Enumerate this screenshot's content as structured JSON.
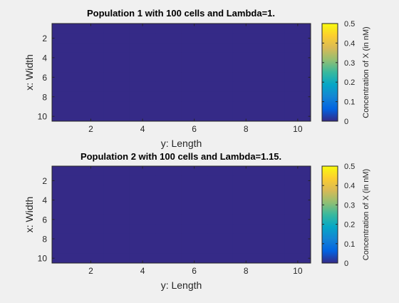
{
  "figure": {
    "background": "#f0f0f0",
    "fill_color": "#352a87",
    "colormap": "parula",
    "colormap_stops": [
      "#352a87",
      "#0363e1",
      "#1485d4",
      "#06a7c6",
      "#38b99e",
      "#92bf73",
      "#d9ba56",
      "#fcce2e",
      "#f9fb0e"
    ]
  },
  "chart_data": [
    {
      "type": "heatmap",
      "title": "Population 1 with 100 cells and Lambda=1.",
      "xlabel": "y: Length",
      "ylabel": "x: Width",
      "xlim": [
        0.5,
        10.5
      ],
      "ylim": [
        0.5,
        10.5
      ],
      "y_reversed": true,
      "xticks": [
        2,
        4,
        6,
        8,
        10
      ],
      "yticks": [
        2,
        4,
        6,
        8,
        10
      ],
      "grid": false,
      "rows": 10,
      "cols": 10,
      "values": [
        [
          0,
          0,
          0,
          0,
          0,
          0,
          0,
          0,
          0,
          0
        ],
        [
          0,
          0,
          0,
          0,
          0,
          0,
          0,
          0,
          0,
          0
        ],
        [
          0,
          0,
          0,
          0,
          0,
          0,
          0,
          0,
          0,
          0
        ],
        [
          0,
          0,
          0,
          0,
          0,
          0,
          0,
          0,
          0,
          0
        ],
        [
          0,
          0,
          0,
          0,
          0,
          0,
          0,
          0,
          0,
          0
        ],
        [
          0,
          0,
          0,
          0,
          0,
          0,
          0,
          0,
          0,
          0
        ],
        [
          0,
          0,
          0,
          0,
          0,
          0,
          0,
          0,
          0,
          0
        ],
        [
          0,
          0,
          0,
          0,
          0,
          0,
          0,
          0,
          0,
          0
        ],
        [
          0,
          0,
          0,
          0,
          0,
          0,
          0,
          0,
          0,
          0
        ],
        [
          0,
          0,
          0,
          0,
          0,
          0,
          0,
          0,
          0,
          0
        ]
      ],
      "colorbar": {
        "label": "Concentration of X (in nM)",
        "clim": [
          0,
          0.5
        ],
        "ticks": [
          0,
          0.1,
          0.2,
          0.3,
          0.4,
          0.5
        ],
        "tick_labels": [
          "0",
          "0.1",
          "0.2",
          "0.3",
          "0.4",
          "0.5"
        ]
      }
    },
    {
      "type": "heatmap",
      "title": "Population 2 with 100 cells and Lambda=1.15.",
      "xlabel": "y: Length",
      "ylabel": "x: Width",
      "xlim": [
        0.5,
        10.5
      ],
      "ylim": [
        0.5,
        10.5
      ],
      "y_reversed": true,
      "xticks": [
        2,
        4,
        6,
        8,
        10
      ],
      "yticks": [
        2,
        4,
        6,
        8,
        10
      ],
      "grid": false,
      "rows": 10,
      "cols": 10,
      "values": [
        [
          0,
          0,
          0,
          0,
          0,
          0,
          0,
          0,
          0,
          0
        ],
        [
          0,
          0,
          0,
          0,
          0,
          0,
          0,
          0,
          0,
          0
        ],
        [
          0,
          0,
          0,
          0,
          0,
          0,
          0,
          0,
          0,
          0
        ],
        [
          0,
          0,
          0,
          0,
          0,
          0,
          0,
          0,
          0,
          0
        ],
        [
          0,
          0,
          0,
          0,
          0,
          0,
          0,
          0,
          0,
          0
        ],
        [
          0,
          0,
          0,
          0,
          0,
          0,
          0,
          0,
          0,
          0
        ],
        [
          0,
          0,
          0,
          0,
          0,
          0,
          0,
          0,
          0,
          0
        ],
        [
          0,
          0,
          0,
          0,
          0,
          0,
          0,
          0,
          0,
          0
        ],
        [
          0,
          0,
          0,
          0,
          0,
          0,
          0,
          0,
          0,
          0
        ],
        [
          0,
          0,
          0,
          0,
          0,
          0,
          0,
          0,
          0,
          0
        ]
      ],
      "colorbar": {
        "label": "Concentration of X (in nM)",
        "clim": [
          0,
          0.5
        ],
        "ticks": [
          0,
          0.1,
          0.2,
          0.3,
          0.4,
          0.5
        ],
        "tick_labels": [
          "0",
          "0.1",
          "0.2",
          "0.3",
          "0.4",
          "0.5"
        ]
      }
    }
  ]
}
